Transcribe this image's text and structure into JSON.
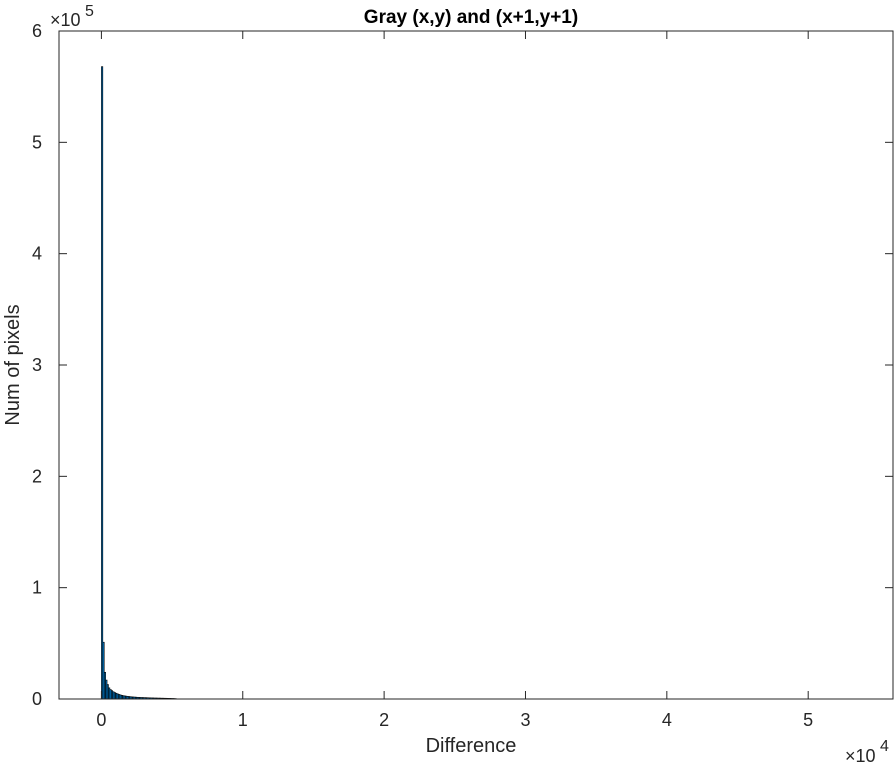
{
  "chart_data": {
    "type": "bar",
    "title": "Gray (x,y) and (x+1,y+1)",
    "xlabel": "Difference",
    "ylabel": "Num of pixels",
    "xlim": [
      -3000,
      56000
    ],
    "ylim": [
      0,
      600000
    ],
    "x_exponent": {
      "base": "×10",
      "power": "4"
    },
    "y_exponent": {
      "base": "×10",
      "power": "5"
    },
    "x_ticks": [
      {
        "value": 0,
        "label": "0"
      },
      {
        "value": 10000,
        "label": "1"
      },
      {
        "value": 20000,
        "label": "2"
      },
      {
        "value": 30000,
        "label": "3"
      },
      {
        "value": 40000,
        "label": "4"
      },
      {
        "value": 50000,
        "label": "5"
      }
    ],
    "y_ticks": [
      {
        "value": 0,
        "label": "0"
      },
      {
        "value": 100000,
        "label": "1"
      },
      {
        "value": 200000,
        "label": "2"
      },
      {
        "value": 300000,
        "label": "3"
      },
      {
        "value": 400000,
        "label": "4"
      },
      {
        "value": 500000,
        "label": "5"
      },
      {
        "value": 600000,
        "label": "6"
      }
    ],
    "bar_width": 100,
    "bin_centers": [
      50,
      150,
      250,
      350,
      450,
      550,
      650,
      750,
      850,
      950,
      1050,
      1150,
      1250,
      1350,
      1450,
      1550,
      1650,
      1750,
      1850,
      1950,
      2050,
      2150,
      2250,
      2350,
      2450,
      2550,
      2650,
      2750,
      2850,
      2950,
      3050,
      3150,
      3250,
      3350,
      3450,
      3550,
      3650,
      3750,
      3850,
      3950,
      4050,
      4150,
      4250,
      4350,
      4450,
      4550,
      4650,
      4750,
      4850,
      4950,
      5050,
      5150,
      5250
    ],
    "values": [
      568000,
      51000,
      24000,
      17000,
      13000,
      10000,
      8500,
      7500,
      6500,
      5800,
      5200,
      4600,
      4100,
      3700,
      3300,
      3000,
      2800,
      2600,
      2400,
      2250,
      2100,
      1950,
      1850,
      1750,
      1650,
      1550,
      1450,
      1400,
      1350,
      1300,
      1250,
      1200,
      1150,
      1100,
      1050,
      1000,
      960,
      920,
      880,
      850,
      820,
      790,
      760,
      730,
      700,
      670,
      640,
      600,
      560,
      520,
      480,
      420,
      350
    ]
  }
}
